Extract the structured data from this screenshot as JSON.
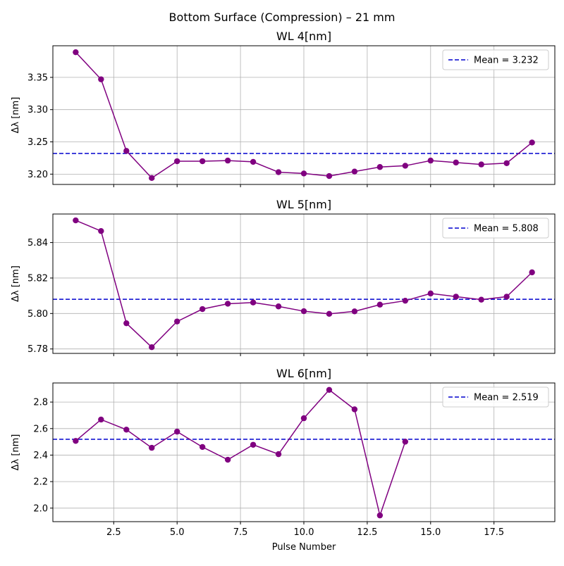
{
  "suptitle": "Bottom Surface (Compression) – 21 mm",
  "colors": {
    "line": "#800080",
    "mean": "#0000cd",
    "grid": "#b0b0b0"
  },
  "chart_data": [
    {
      "type": "line",
      "title": "WL 4[nm]",
      "ylabel": "Δλ [nm]",
      "xlabel": "",
      "x": [
        1,
        2,
        3,
        4,
        5,
        6,
        7,
        8,
        9,
        10,
        11,
        12,
        13,
        14,
        15,
        16,
        17,
        18,
        19
      ],
      "values": [
        3.389,
        3.347,
        3.236,
        3.194,
        3.22,
        3.22,
        3.221,
        3.219,
        3.203,
        3.201,
        3.197,
        3.204,
        3.211,
        3.213,
        3.221,
        3.218,
        3.215,
        3.217,
        3.249
      ],
      "mean": 3.232,
      "legend": "Mean = 3.232",
      "xlim": [
        0.1,
        19.9
      ],
      "ylim": [
        3.184,
        3.399
      ],
      "yticks": [
        3.2,
        3.25,
        3.3,
        3.35
      ],
      "ytick_labels": [
        "3.20",
        "3.25",
        "3.30",
        "3.35"
      ],
      "xticks": [
        2.5,
        5.0,
        7.5,
        10.0,
        12.5,
        15.0,
        17.5
      ],
      "xtick_labels": [],
      "grid": true,
      "legend_position": "top-right"
    },
    {
      "type": "line",
      "title": "WL 5[nm]",
      "ylabel": "Δλ [nm]",
      "xlabel": "",
      "x": [
        1,
        2,
        3,
        4,
        5,
        6,
        7,
        8,
        9,
        10,
        11,
        12,
        13,
        14,
        15,
        16,
        17,
        18,
        19
      ],
      "values": [
        5.8525,
        5.8465,
        5.7945,
        5.781,
        5.7955,
        5.8025,
        5.8055,
        5.8062,
        5.804,
        5.8013,
        5.7998,
        5.8012,
        5.805,
        5.8072,
        5.8113,
        5.8095,
        5.8078,
        5.8095,
        5.8232
      ],
      "mean": 5.808,
      "legend": "Mean = 5.808",
      "xlim": [
        0.1,
        19.9
      ],
      "ylim": [
        5.7775,
        5.8561
      ],
      "yticks": [
        5.78,
        5.8,
        5.82,
        5.84
      ],
      "ytick_labels": [
        "5.78",
        "5.80",
        "5.82",
        "5.84"
      ],
      "xticks": [
        2.5,
        5.0,
        7.5,
        10.0,
        12.5,
        15.0,
        17.5
      ],
      "xtick_labels": [],
      "grid": true,
      "legend_position": "top-right"
    },
    {
      "type": "line",
      "title": "WL 6[nm]",
      "ylabel": "Δλ [nm]",
      "xlabel": "Pulse Number",
      "x": [
        1,
        2,
        3,
        4,
        5,
        6,
        7,
        8,
        9,
        10,
        11,
        12,
        13,
        14
      ],
      "values": [
        2.507,
        2.668,
        2.592,
        2.455,
        2.577,
        2.461,
        2.365,
        2.478,
        2.407,
        2.678,
        2.892,
        2.745,
        1.945,
        2.501
      ],
      "mean": 2.519,
      "legend": "Mean = 2.519",
      "xlim": [
        0.1,
        19.9
      ],
      "ylim": [
        1.898,
        2.944
      ],
      "yticks": [
        2.0,
        2.2,
        2.4,
        2.6,
        2.8
      ],
      "ytick_labels": [
        "2.0",
        "2.2",
        "2.4",
        "2.6",
        "2.8"
      ],
      "xticks": [
        2.5,
        5.0,
        7.5,
        10.0,
        12.5,
        15.0,
        17.5
      ],
      "xtick_labels": [
        "2.5",
        "5.0",
        "7.5",
        "10.0",
        "12.5",
        "15.0",
        "17.5"
      ],
      "grid": true,
      "legend_position": "top-right"
    }
  ]
}
